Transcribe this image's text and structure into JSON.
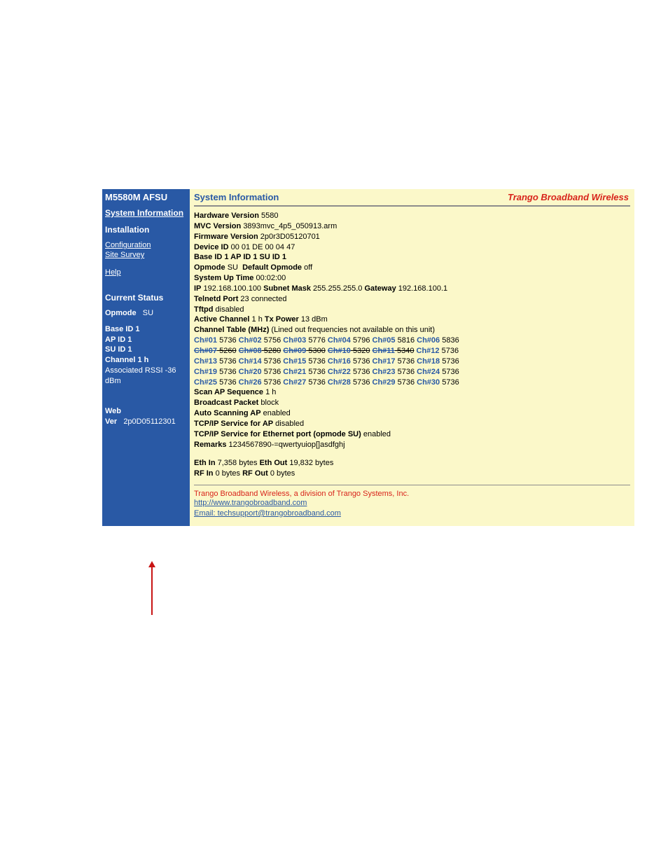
{
  "colors": {
    "page_bg": "#ffffff",
    "panel_bg": "#fbf8c9",
    "sidebar_bg": "#2959a5",
    "sidebar_text": "#ffffff",
    "accent_blue": "#2959a5",
    "accent_red": "#d8241b",
    "arrow_red": "#c81414",
    "sep_gray": "#8c8c8c"
  },
  "sidebar": {
    "title": "M5580M AFSU",
    "sys_info": "System Information",
    "installation": "Installation",
    "config": "Configuration",
    "site_survey": "Site Survey",
    "help": "Help",
    "current_status": "Current Status",
    "opmode_label": "Opmode",
    "opmode_val": "SU",
    "base": "Base ID 1",
    "ap": "AP ID 1",
    "su": "SU ID 1",
    "channel": "Channel    1 h",
    "assoc": "Associated RSSI -36 dBm",
    "webver_label": "Web Ver",
    "webver_val": "2p0D05112301"
  },
  "brand": "Trango Broadband Wireless",
  "main_title": "System Information",
  "info": {
    "hw_l": "Hardware Version",
    "hw_v": "5580",
    "mvc_l": "MVC Version",
    "mvc_v": "3893mvc_4p5_050913.arm",
    "fw_l": "Firmware Version",
    "fw_v": "2p0r3D05120701",
    "dev_l": "Device ID",
    "dev_v": "00 01 DE 00 04 47",
    "ids": "Base ID 1 AP ID 1 SU ID 1",
    "op_l": "Opmode",
    "op_v": "SU",
    "dop_l": "Default Opmode",
    "dop_v": "off",
    "up_l": "System Up Time",
    "up_v": "00:02:00",
    "ip_l": "IP",
    "ip_v": "192.168.100.100",
    "sm_l": "Subnet Mask",
    "sm_v": "255.255.255.0",
    "gw_l": "Gateway",
    "gw_v": "192.168.100.1",
    "tel_l": "Telnetd Port",
    "tel_v": "23 connected",
    "tftp_l": "Tftpd",
    "tftp_v": "disabled",
    "ac_l": "Active Channel",
    "ac_v": "1 h",
    "txp_l": "Tx Power",
    "txp_v": "13 dBm",
    "ct_l": "Channel Table (MHz)",
    "ct_note": "(Lined out frequencies not available on this unit)",
    "scan_l": "Scan AP Sequence",
    "scan_v": "1 h",
    "bp_l": "Broadcast Packet",
    "bp_v": "block",
    "auto_l": "Auto Scanning AP",
    "auto_v": "enabled",
    "tcpap_l": "TCP/IP Service for AP",
    "tcpap_v": "disabled",
    "tcpeth_l": "TCP/IP Service for Ethernet port (opmode SU)",
    "tcpeth_v": "enabled",
    "rem_l": "Remarks",
    "rem_v": "1234567890-=qwertyuiop[]asdfghj",
    "ein_l": "Eth In",
    "ein_v": "7,358 bytes",
    "eout_l": "Eth Out",
    "eout_v": "19,832 bytes",
    "rfin_l": "RF In",
    "rfin_v": "0 bytes",
    "rfout_l": "RF Out",
    "rfout_v": "0 bytes"
  },
  "channels": [
    [
      {
        "n": "Ch#01",
        "v": "5736",
        "x": false
      },
      {
        "n": "Ch#02",
        "v": "5756",
        "x": false
      },
      {
        "n": "Ch#03",
        "v": "5776",
        "x": false
      },
      {
        "n": "Ch#04",
        "v": "5796",
        "x": false
      },
      {
        "n": "Ch#05",
        "v": "5816",
        "x": false
      },
      {
        "n": "Ch#06",
        "v": "5836",
        "x": false
      }
    ],
    [
      {
        "n": "Ch#07",
        "v": "5260",
        "x": true
      },
      {
        "n": "Ch#08",
        "v": "5280",
        "x": true
      },
      {
        "n": "Ch#09",
        "v": "5300",
        "x": true
      },
      {
        "n": "Ch#10",
        "v": "5320",
        "x": true
      },
      {
        "n": "Ch#11",
        "v": "5340",
        "x": true
      },
      {
        "n": "Ch#12",
        "v": "5736",
        "x": false
      }
    ],
    [
      {
        "n": "Ch#13",
        "v": "5736",
        "x": false
      },
      {
        "n": "Ch#14",
        "v": "5736",
        "x": false
      },
      {
        "n": "Ch#15",
        "v": "5736",
        "x": false
      },
      {
        "n": "Ch#16",
        "v": "5736",
        "x": false
      },
      {
        "n": "Ch#17",
        "v": "5736",
        "x": false
      },
      {
        "n": "Ch#18",
        "v": "5736",
        "x": false
      }
    ],
    [
      {
        "n": "Ch#19",
        "v": "5736",
        "x": false
      },
      {
        "n": "Ch#20",
        "v": "5736",
        "x": false
      },
      {
        "n": "Ch#21",
        "v": "5736",
        "x": false
      },
      {
        "n": "Ch#22",
        "v": "5736",
        "x": false
      },
      {
        "n": "Ch#23",
        "v": "5736",
        "x": false
      },
      {
        "n": "Ch#24",
        "v": "5736",
        "x": false
      }
    ],
    [
      {
        "n": "Ch#25",
        "v": "5736",
        "x": false
      },
      {
        "n": "Ch#26",
        "v": "5736",
        "x": false
      },
      {
        "n": "Ch#27",
        "v": "5736",
        "x": false
      },
      {
        "n": "Ch#28",
        "v": "5736",
        "x": false
      },
      {
        "n": "Ch#29",
        "v": "5736",
        "x": false
      },
      {
        "n": "Ch#30",
        "v": "5736",
        "x": false
      }
    ]
  ],
  "footer": {
    "line1": "Trango Broadband Wireless, a division of Trango Systems, Inc.",
    "link1": "http://www.trangobroadband.com",
    "link2": "Email: techsupport@trangobroadband.com"
  }
}
